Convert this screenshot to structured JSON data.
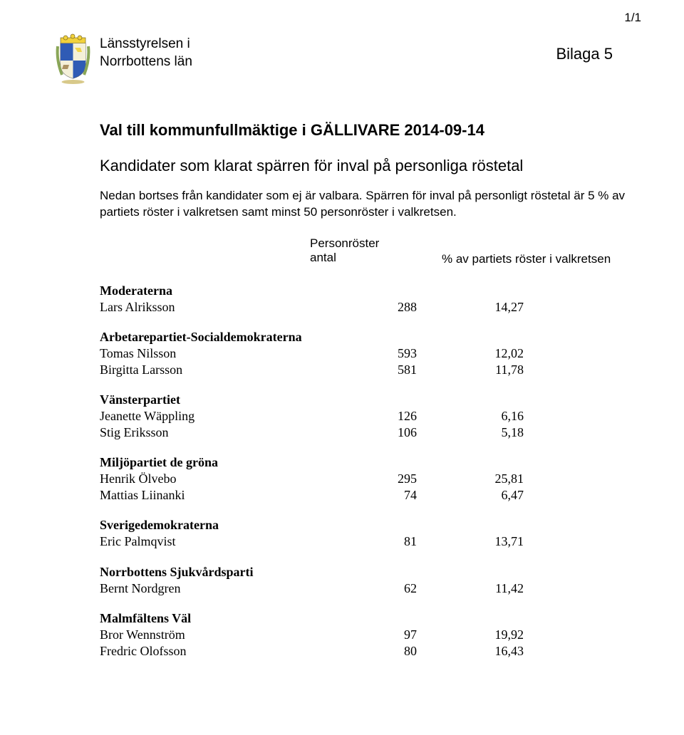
{
  "page_number": "1/1",
  "org_line1": "Länsstyrelsen i",
  "org_line2": "Norrbottens län",
  "bilaga": "Bilaga 5",
  "title": "Val till kommunfullmäktige i GÄLLIVARE 2014-09-14",
  "subtitle": "Kandidater som klarat spärren för inval på personliga röstetal",
  "body_text": "Nedan bortses från kandidater som ej är valbara. Spärren för inval på personligt röstetal är 5 % av partiets röster i valkretsen samt minst 50 personröster i valkretsen.",
  "col_header_top": "Personröster",
  "col_header_left": "antal",
  "col_header_right": "% av partiets röster i valkretsen",
  "parties": [
    {
      "name": "Moderaterna",
      "rows": [
        {
          "candidate": "Lars Alriksson",
          "count": "288",
          "pct": "14,27"
        }
      ]
    },
    {
      "name": "Arbetarepartiet-Socialdemokraterna",
      "rows": [
        {
          "candidate": "Tomas Nilsson",
          "count": "593",
          "pct": "12,02"
        },
        {
          "candidate": "Birgitta Larsson",
          "count": "581",
          "pct": "11,78"
        }
      ]
    },
    {
      "name": "Vänsterpartiet",
      "rows": [
        {
          "candidate": "Jeanette Wäppling",
          "count": "126",
          "pct": "6,16"
        },
        {
          "candidate": "Stig Eriksson",
          "count": "106",
          "pct": "5,18"
        }
      ]
    },
    {
      "name": "Miljöpartiet de gröna",
      "rows": [
        {
          "candidate": "Henrik Ölvebo",
          "count": "295",
          "pct": "25,81"
        },
        {
          "candidate": "Mattias Liinanki",
          "count": "74",
          "pct": "6,47"
        }
      ]
    },
    {
      "name": "Sverigedemokraterna",
      "rows": [
        {
          "candidate": "Eric Palmqvist",
          "count": "81",
          "pct": "13,71"
        }
      ]
    },
    {
      "name": "Norrbottens Sjukvårdsparti",
      "rows": [
        {
          "candidate": "Bernt Nordgren",
          "count": "62",
          "pct": "11,42"
        }
      ]
    },
    {
      "name": "Malmfältens Väl",
      "rows": [
        {
          "candidate": "Bror Wennström",
          "count": "97",
          "pct": "19,92"
        },
        {
          "candidate": "Fredric Olofsson",
          "count": "80",
          "pct": "16,43"
        }
      ]
    }
  ]
}
